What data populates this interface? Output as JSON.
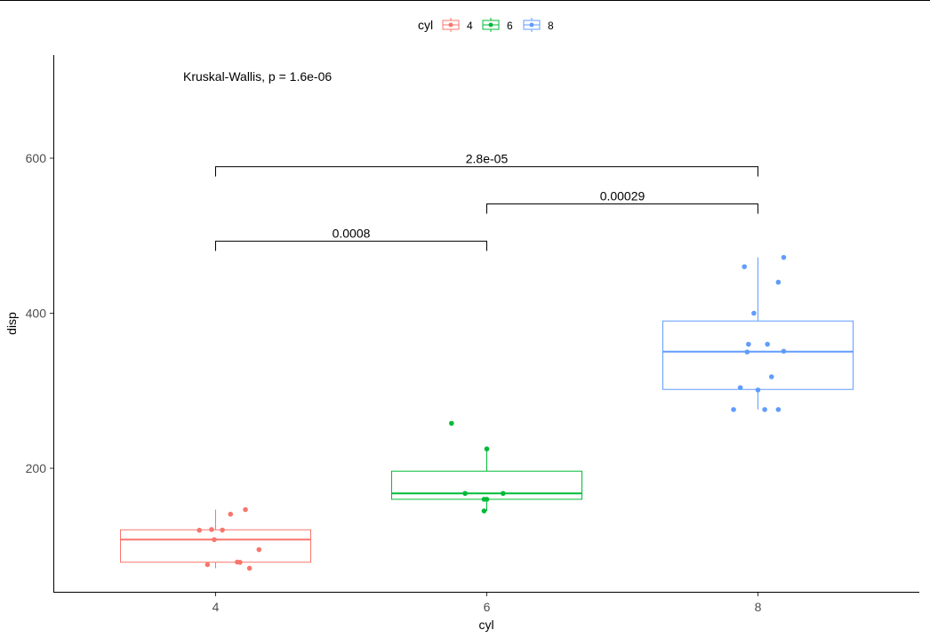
{
  "chart_data": {
    "type": "box",
    "xlabel": "cyl",
    "ylabel": "disp",
    "categories": [
      "4",
      "6",
      "8"
    ],
    "y_ticks": [
      200,
      400,
      600
    ],
    "ylim": [
      55,
      720
    ],
    "legend": {
      "title": "cyl",
      "position": "top",
      "entries": [
        "4",
        "6",
        "8"
      ]
    },
    "colors": {
      "4": "#F8766D",
      "6": "#00BA38",
      "8": "#619CFF"
    },
    "annotation": "Kruskal-Wallis, p = 1.6e-06",
    "series": [
      {
        "group": "4",
        "box": {
          "q1": 78.85,
          "median": 108.0,
          "q3": 120.65,
          "whisker_low": 71.1,
          "whisker_high": 146.7
        },
        "points": [
          {
            "x": 3.99,
            "y": 108.0
          },
          {
            "x": 4.22,
            "y": 146.7
          },
          {
            "x": 4.11,
            "y": 140.8
          },
          {
            "x": 4.18,
            "y": 78.7
          },
          {
            "x": 3.94,
            "y": 75.7
          },
          {
            "x": 4.25,
            "y": 71.1
          },
          {
            "x": 3.88,
            "y": 120.1
          },
          {
            "x": 4.16,
            "y": 79.0
          },
          {
            "x": 4.05,
            "y": 120.3
          },
          {
            "x": 4.32,
            "y": 95.1
          },
          {
            "x": 3.97,
            "y": 121.0
          }
        ]
      },
      {
        "group": "6",
        "box": {
          "q1": 160.0,
          "median": 167.6,
          "q3": 196.3,
          "whisker_low": 145.0,
          "whisker_high": 225.0
        },
        "points": [
          {
            "x": 5.74,
            "y": 258.0
          },
          {
            "x": 6.0,
            "y": 225.0
          },
          {
            "x": 5.84,
            "y": 167.6
          },
          {
            "x": 6.12,
            "y": 167.6
          },
          {
            "x": 5.98,
            "y": 160.0
          },
          {
            "x": 6.0,
            "y": 160.0
          },
          {
            "x": 5.98,
            "y": 145.0
          }
        ]
      },
      {
        "group": "8",
        "box": {
          "q1": 301.75,
          "median": 350.5,
          "q3": 390.0,
          "whisker_low": 275.8,
          "whisker_high": 472.0
        },
        "points": [
          {
            "x": 7.9,
            "y": 460.0
          },
          {
            "x": 8.19,
            "y": 472.0
          },
          {
            "x": 8.15,
            "y": 440.0
          },
          {
            "x": 7.97,
            "y": 400.0
          },
          {
            "x": 7.93,
            "y": 360.0
          },
          {
            "x": 8.07,
            "y": 360.0
          },
          {
            "x": 7.92,
            "y": 350.0
          },
          {
            "x": 8.19,
            "y": 351.0
          },
          {
            "x": 8.1,
            "y": 318.0
          },
          {
            "x": 7.87,
            "y": 304.0
          },
          {
            "x": 8.0,
            "y": 301.0
          },
          {
            "x": 7.82,
            "y": 275.8
          },
          {
            "x": 8.05,
            "y": 275.8
          },
          {
            "x": 8.15,
            "y": 275.8
          }
        ]
      }
    ],
    "comparisons": [
      {
        "from": "4",
        "to": "6",
        "y": 493,
        "label": "0.0008"
      },
      {
        "from": "6",
        "to": "8",
        "y": 541,
        "label": "0.00029"
      },
      {
        "from": "4",
        "to": "8",
        "y": 589,
        "label": "2.8e-05"
      }
    ]
  }
}
